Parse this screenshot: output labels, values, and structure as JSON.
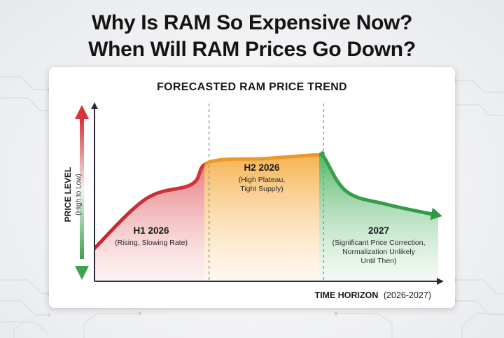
{
  "headline": {
    "line1": "Why Is RAM So Expensive Now?",
    "line2": "When Will RAM Prices Go Down?"
  },
  "chart_data": {
    "type": "line",
    "title": "FORECASTED RAM PRICE TREND",
    "ylabel": "PRICE LEVEL",
    "ylabel_sub": "(High to Low)",
    "xlabel": "TIME HORIZON",
    "xlabel_sub": "(2026-2027)",
    "x_range": [
      0,
      3
    ],
    "y_range": [
      0,
      100
    ],
    "grid": false,
    "series": [
      {
        "points": [
          {
            "x": 0.0,
            "y": 18
          },
          {
            "x": 0.45,
            "y": 45
          },
          {
            "x": 0.85,
            "y": 53
          },
          {
            "x": 1.0,
            "y": 65
          },
          {
            "x": 1.5,
            "y": 67
          },
          {
            "x": 1.95,
            "y": 69
          },
          {
            "x": 2.0,
            "y": 68
          },
          {
            "x": 2.2,
            "y": 49
          },
          {
            "x": 2.55,
            "y": 42
          },
          {
            "x": 3.0,
            "y": 36
          }
        ]
      }
    ],
    "phases": [
      {
        "label": "H1 2026",
        "note": "(Rising, Slowing Rate)",
        "color": "#e05a5f",
        "x_start": 0,
        "x_end": 1
      },
      {
        "label": "H2 2026",
        "note_lines": [
          "(High Plateau,",
          "Tight Supply)"
        ],
        "color": "#f5a83a",
        "x_start": 1,
        "x_end": 2
      },
      {
        "label": "2027",
        "note_lines": [
          "(Significant Price Correction,",
          "Normalization Unlikely",
          "Until Then)"
        ],
        "color": "#3fae55",
        "x_start": 2,
        "x_end": 3
      }
    ],
    "colors": {
      "up_arrow": "#d8343a",
      "down_arrow": "#3aa64b",
      "axis": "#2a2a3a",
      "divider": "#8a8a8a"
    }
  }
}
